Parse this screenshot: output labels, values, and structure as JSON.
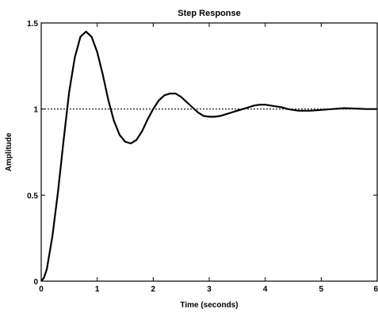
{
  "chart_data": {
    "type": "line",
    "title": "Step Response",
    "xlabel": "Time (seconds)",
    "ylabel": "Amplitude",
    "xlim": [
      0,
      6
    ],
    "ylim": [
      0,
      1.5
    ],
    "x_ticks": [
      0,
      1,
      2,
      3,
      4,
      5,
      6
    ],
    "y_ticks": [
      0,
      0.5,
      1,
      1.5
    ],
    "x_tick_labels": [
      "0",
      "1",
      "2",
      "3",
      "4",
      "5",
      "6"
    ],
    "y_tick_labels": [
      "0",
      "0.5",
      "1",
      "1.5"
    ],
    "reference_line": {
      "y": 1,
      "style": "dotted"
    },
    "grid": false,
    "series": [
      {
        "x": [
          0,
          0.05,
          0.1,
          0.2,
          0.3,
          0.4,
          0.5,
          0.6,
          0.7,
          0.8,
          0.9,
          1.0,
          1.1,
          1.2,
          1.3,
          1.4,
          1.5,
          1.6,
          1.7,
          1.8,
          1.9,
          2.0,
          2.1,
          2.2,
          2.3,
          2.4,
          2.5,
          2.6,
          2.7,
          2.8,
          2.9,
          3.0,
          3.1,
          3.2,
          3.3,
          3.4,
          3.5,
          3.6,
          3.7,
          3.8,
          3.9,
          4.0,
          4.1,
          4.2,
          4.3,
          4.4,
          4.5,
          4.6,
          4.8,
          5.0,
          5.2,
          5.4,
          5.6,
          5.8,
          6.0
        ],
        "y": [
          0,
          0.02,
          0.07,
          0.26,
          0.52,
          0.82,
          1.1,
          1.3,
          1.42,
          1.45,
          1.42,
          1.33,
          1.2,
          1.05,
          0.93,
          0.85,
          0.81,
          0.8,
          0.82,
          0.87,
          0.94,
          1.0,
          1.05,
          1.08,
          1.09,
          1.09,
          1.07,
          1.04,
          1.01,
          0.98,
          0.96,
          0.955,
          0.955,
          0.96,
          0.97,
          0.98,
          0.99,
          1.0,
          1.01,
          1.02,
          1.025,
          1.025,
          1.02,
          1.015,
          1.01,
          1.0,
          0.995,
          0.99,
          0.99,
          0.995,
          1.0,
          1.005,
          1.003,
          1.0,
          1.0
        ]
      }
    ]
  }
}
